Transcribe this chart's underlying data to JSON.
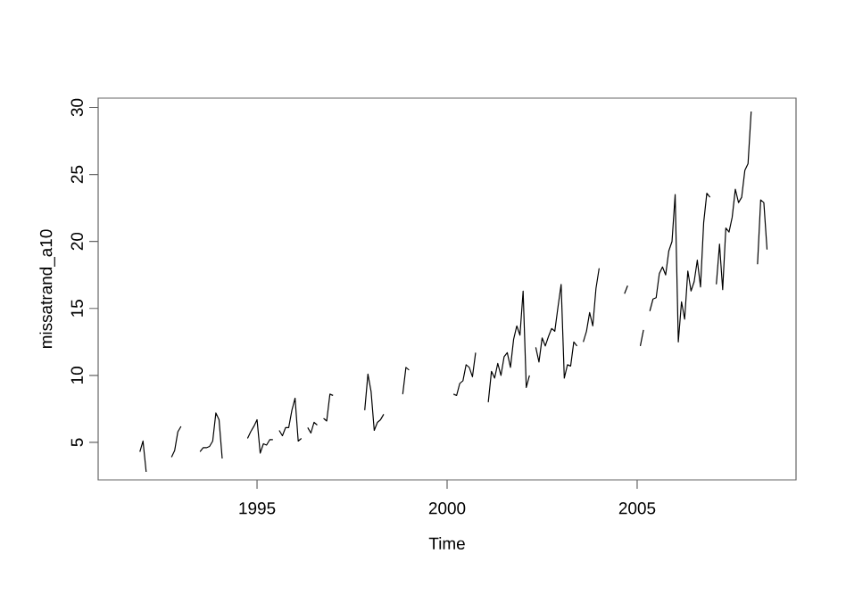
{
  "chart_data": {
    "type": "line",
    "xlabel": "Time",
    "ylabel": "missatrand_a10",
    "color": "#000000",
    "line_style": "solid",
    "marker": "none",
    "grid": false,
    "xlim": [
      1990.82,
      2009.18
    ],
    "xticks": [
      1995,
      2000,
      2005
    ],
    "ylim": [
      2.2,
      30.7
    ],
    "yticks": [
      5,
      10,
      15,
      20,
      25,
      30
    ],
    "x": [
      1991.917,
      1992,
      1992.083,
      1992.167,
      1992.25,
      1992.333,
      1992.417,
      1992.5,
      1992.583,
      1992.667,
      1992.75,
      1992.833,
      1992.917,
      1993,
      1993.083,
      1993.167,
      1993.25,
      1993.333,
      1993.417,
      1993.5,
      1993.583,
      1993.667,
      1993.75,
      1993.833,
      1993.917,
      1994,
      1994.083,
      1994.167,
      1994.25,
      1994.333,
      1994.417,
      1994.5,
      1994.583,
      1994.667,
      1994.75,
      1994.833,
      1994.917,
      1995,
      1995.083,
      1995.167,
      1995.25,
      1995.333,
      1995.417,
      1995.5,
      1995.583,
      1995.667,
      1995.75,
      1995.833,
      1995.917,
      1996,
      1996.083,
      1996.167,
      1996.25,
      1996.333,
      1996.417,
      1996.5,
      1996.583,
      1996.667,
      1996.75,
      1996.833,
      1996.917,
      1997,
      1997.083,
      1997.167,
      1997.25,
      1997.333,
      1997.417,
      1997.5,
      1997.583,
      1997.667,
      1997.75,
      1997.833,
      1997.917,
      1998,
      1998.083,
      1998.167,
      1998.25,
      1998.333,
      1998.417,
      1998.5,
      1998.583,
      1998.667,
      1998.75,
      1998.833,
      1998.917,
      1999,
      1999.083,
      1999.167,
      1999.25,
      1999.333,
      1999.417,
      1999.5,
      1999.583,
      1999.667,
      1999.75,
      1999.833,
      1999.917,
      2000,
      2000.083,
      2000.167,
      2000.25,
      2000.333,
      2000.417,
      2000.5,
      2000.583,
      2000.667,
      2000.75,
      2000.833,
      2000.917,
      2001,
      2001.083,
      2001.167,
      2001.25,
      2001.333,
      2001.417,
      2001.5,
      2001.583,
      2001.667,
      2001.75,
      2001.833,
      2001.917,
      2002,
      2002.083,
      2002.167,
      2002.25,
      2002.333,
      2002.417,
      2002.5,
      2002.583,
      2002.667,
      2002.75,
      2002.833,
      2002.917,
      2003,
      2003.083,
      2003.167,
      2003.25,
      2003.333,
      2003.417,
      2003.5,
      2003.583,
      2003.667,
      2003.75,
      2003.833,
      2003.917,
      2004,
      2004.083,
      2004.167,
      2004.25,
      2004.333,
      2004.417,
      2004.5,
      2004.583,
      2004.667,
      2004.75,
      2004.833,
      2004.917,
      2005,
      2005.083,
      2005.167,
      2005.25,
      2005.333,
      2005.417,
      2005.5,
      2005.583,
      2005.667,
      2005.75,
      2005.833,
      2005.917,
      2006,
      2006.083,
      2006.167,
      2006.25,
      2006.333,
      2006.417,
      2006.5,
      2006.583,
      2006.667,
      2006.75,
      2006.833,
      2006.917,
      2007,
      2007.083,
      2007.167,
      2007.25,
      2007.333,
      2007.417,
      2007.5,
      2007.583,
      2007.667,
      2007.75,
      2007.833,
      2007.917,
      2008,
      2008.083,
      2008.167,
      2008.25,
      2008.333,
      2008.417
    ],
    "values": [
      4.3,
      5.1,
      2.8,
      null,
      null,
      null,
      null,
      null,
      null,
      null,
      3.9,
      4.4,
      5.8,
      6.2,
      null,
      null,
      null,
      null,
      null,
      4.3,
      4.6,
      4.6,
      4.7,
      5.1,
      7.2,
      6.7,
      3.8,
      null,
      null,
      null,
      null,
      null,
      null,
      null,
      5.3,
      5.8,
      6.2,
      6.7,
      4.2,
      4.9,
      4.8,
      5.2,
      5.2,
      null,
      5.9,
      5.5,
      6.1,
      6.1,
      7.4,
      8.3,
      5.1,
      5.3,
      null,
      6.1,
      5.7,
      6.5,
      6.3,
      null,
      6.8,
      6.6,
      8.6,
      8.5,
      null,
      null,
      null,
      null,
      null,
      null,
      null,
      null,
      null,
      7.4,
      10.1,
      8.8,
      5.9,
      6.5,
      6.7,
      7.1,
      null,
      null,
      null,
      null,
      null,
      8.6,
      10.6,
      10.4,
      null,
      null,
      null,
      null,
      null,
      null,
      null,
      null,
      null,
      null,
      null,
      null,
      null,
      8.6,
      8.5,
      9.4,
      9.6,
      10.8,
      10.6,
      9.9,
      11.7,
      null,
      null,
      null,
      8.0,
      10.3,
      9.8,
      10.9,
      10.0,
      11.4,
      11.7,
      10.6,
      12.7,
      13.7,
      13.0,
      16.3,
      9.1,
      10.0,
      null,
      12.1,
      11.0,
      12.8,
      12.2,
      12.9,
      13.5,
      13.3,
      15.1,
      16.8,
      9.8,
      10.8,
      10.7,
      12.5,
      12.2,
      null,
      12.5,
      13.3,
      14.7,
      13.7,
      16.5,
      18.0,
      null,
      null,
      null,
      null,
      null,
      null,
      null,
      16.1,
      16.7,
      null,
      null,
      null,
      12.2,
      13.4,
      null,
      14.8,
      15.7,
      15.8,
      17.6,
      18.1,
      17.5,
      19.3,
      20.0,
      23.5,
      12.5,
      15.5,
      14.2,
      17.8,
      16.3,
      17.0,
      18.6,
      16.6,
      21.4,
      23.6,
      23.3,
      null,
      16.8,
      19.8,
      16.4,
      21.0,
      20.7,
      21.8,
      23.9,
      22.9,
      23.3,
      25.3,
      25.8,
      29.7,
      null,
      18.3,
      23.1,
      22.9,
      19.4
    ]
  }
}
